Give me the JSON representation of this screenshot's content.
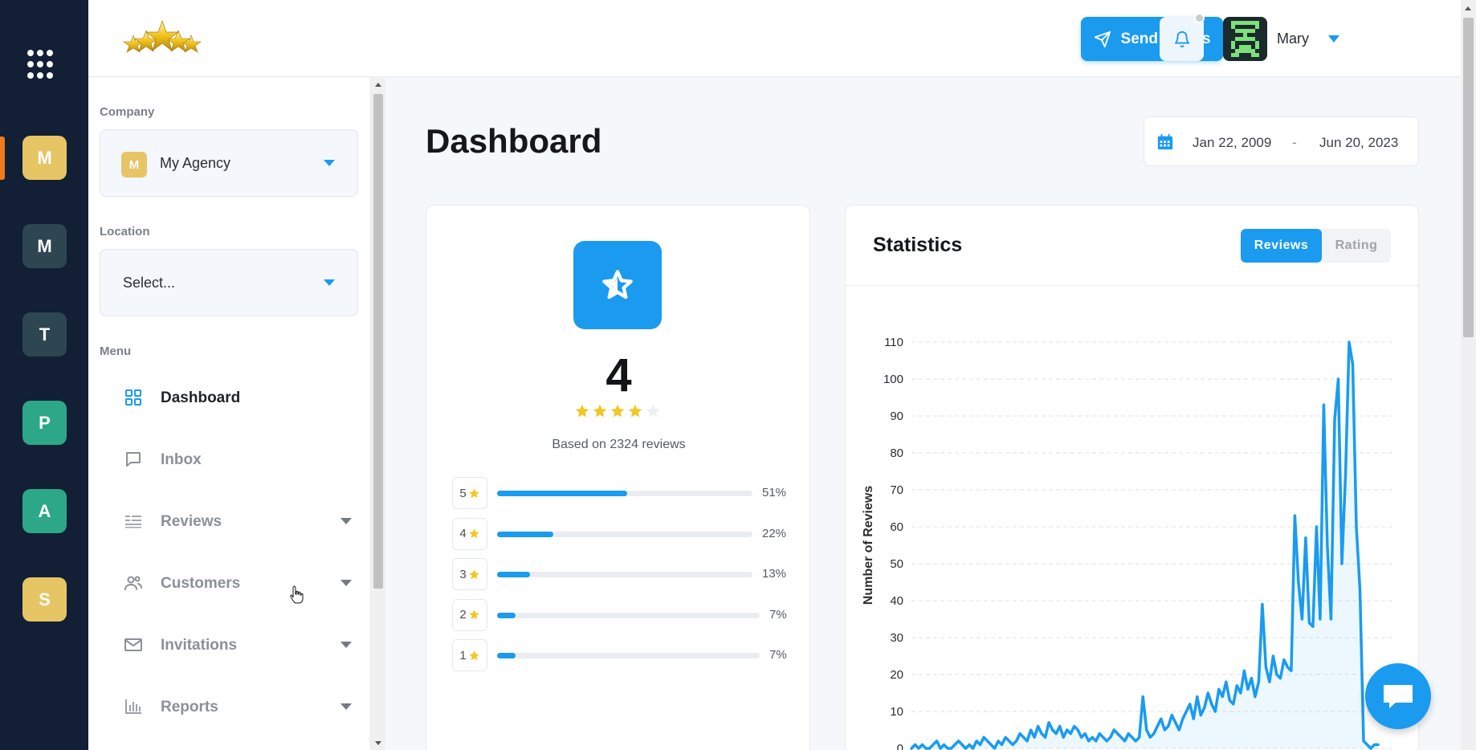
{
  "rail": {
    "companies": [
      {
        "initial": "M",
        "color": "#e6c565"
      },
      {
        "initial": "M",
        "color": "#2e4652"
      },
      {
        "initial": "T",
        "color": "#2e4652"
      },
      {
        "initial": "P",
        "color": "#2ca889"
      },
      {
        "initial": "A",
        "color": "#2ca889"
      },
      {
        "initial": "S",
        "color": "#e6c565"
      }
    ]
  },
  "header": {
    "send_label": "Send invites",
    "user_name": "Mary"
  },
  "sidebar": {
    "company_label": "Company",
    "company_initial": "M",
    "company_value": "My Agency",
    "location_label": "Location",
    "location_value": "Select...",
    "menu_label": "Menu",
    "items": [
      {
        "label": "Dashboard",
        "icon": "grid-icon",
        "active": true
      },
      {
        "label": "Inbox",
        "icon": "chat-bubble-icon"
      },
      {
        "label": "Reviews",
        "icon": "reviews-list-icon"
      },
      {
        "label": "Customers",
        "icon": "users-icon"
      },
      {
        "label": "Invitations",
        "icon": "envelope-icon"
      },
      {
        "label": "Reports",
        "icon": "bar-chart-icon"
      }
    ]
  },
  "main": {
    "title": "Dashboard",
    "date_from": "Jan 22, 2009",
    "date_sep": "-",
    "date_to": "Jun 20, 2023"
  },
  "rating": {
    "average": "4",
    "stars_filled": 4,
    "stars_total": 5,
    "based_on": "Based on 2324 reviews",
    "distribution": [
      {
        "stars": "5",
        "percent": 51,
        "label": "51%"
      },
      {
        "stars": "4",
        "percent": 22,
        "label": "22%"
      },
      {
        "stars": "3",
        "percent": 13,
        "label": "13%"
      },
      {
        "stars": "2",
        "percent": 7,
        "label": "7%"
      },
      {
        "stars": "1",
        "percent": 7,
        "label": "7%"
      }
    ]
  },
  "statistics": {
    "title": "Statistics",
    "tab_reviews": "Reviews",
    "tab_rating": "Rating"
  },
  "chart_data": {
    "type": "area",
    "title": "",
    "xlabel": "",
    "ylabel": "Number of Reviews",
    "ylim": [
      0,
      110
    ],
    "yticks": [
      "110",
      "100",
      "90",
      "80",
      "70",
      "60",
      "50",
      "40",
      "30",
      "20",
      "10",
      "0"
    ],
    "grid": true,
    "color": "#1a9bf0",
    "series": [
      {
        "values": [
          0,
          1,
          0,
          1,
          0,
          0,
          1,
          2,
          0,
          1,
          0,
          0,
          1,
          2,
          1,
          0,
          1,
          0,
          2,
          1,
          3,
          2,
          1,
          0,
          2,
          1,
          3,
          2,
          1,
          2,
          4,
          3,
          2,
          5,
          3,
          6,
          4,
          3,
          7,
          5,
          4,
          6,
          3,
          5,
          4,
          6,
          5,
          3,
          4,
          2,
          3,
          2,
          4,
          3,
          2,
          3,
          5,
          4,
          3,
          2,
          4,
          3,
          2,
          3,
          14,
          5,
          3,
          4,
          6,
          8,
          5,
          6,
          9,
          7,
          5,
          8,
          10,
          12,
          8,
          14,
          9,
          11,
          15,
          12,
          10,
          16,
          14,
          18,
          13,
          12,
          17,
          15,
          21,
          16,
          19,
          14,
          18,
          39,
          22,
          18,
          25,
          20,
          19,
          24,
          22,
          21,
          63,
          45,
          35,
          57,
          34,
          33,
          60,
          35,
          93,
          55,
          35,
          89,
          100,
          50,
          74,
          110,
          104,
          60,
          43,
          2,
          1,
          0,
          1,
          1
        ]
      }
    ]
  }
}
